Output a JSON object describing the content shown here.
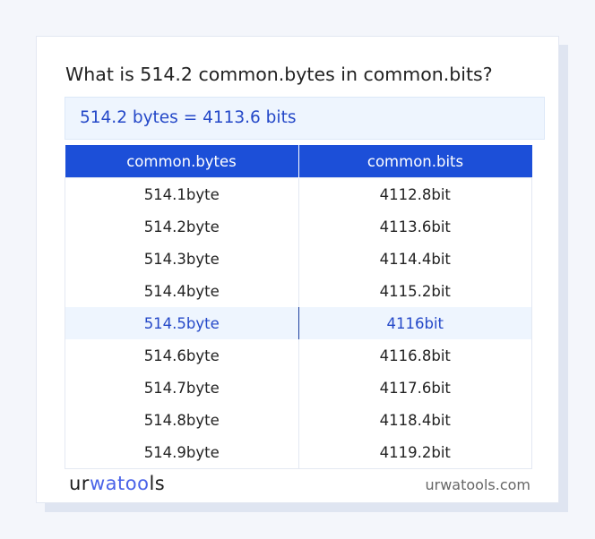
{
  "title": "What is 514.2 common.bytes in common.bits?",
  "result": "514.2 bytes = 4113.6 bits",
  "table": {
    "headers": [
      "common.bytes",
      "common.bits"
    ],
    "rows": [
      [
        "514.1byte",
        "4112.8bit"
      ],
      [
        "514.2byte",
        "4113.6bit"
      ],
      [
        "514.3byte",
        "4114.4bit"
      ],
      [
        "514.4byte",
        "4115.2bit"
      ],
      [
        "514.5byte",
        "4116bit"
      ],
      [
        "514.6byte",
        "4116.8bit"
      ],
      [
        "514.7byte",
        "4117.6bit"
      ],
      [
        "514.8byte",
        "4118.4bit"
      ],
      [
        "514.9byte",
        "4119.2bit"
      ]
    ],
    "highlighted_row": 4
  },
  "footer": {
    "logo": "urwatools",
    "logo_parts": [
      "ur",
      "wa",
      "too",
      "ls"
    ],
    "site": "urwatools.com"
  },
  "colors": {
    "accent": "#1c4fd8",
    "highlight_bg": "#eef5fe",
    "highlight_text": "#2448c8"
  }
}
